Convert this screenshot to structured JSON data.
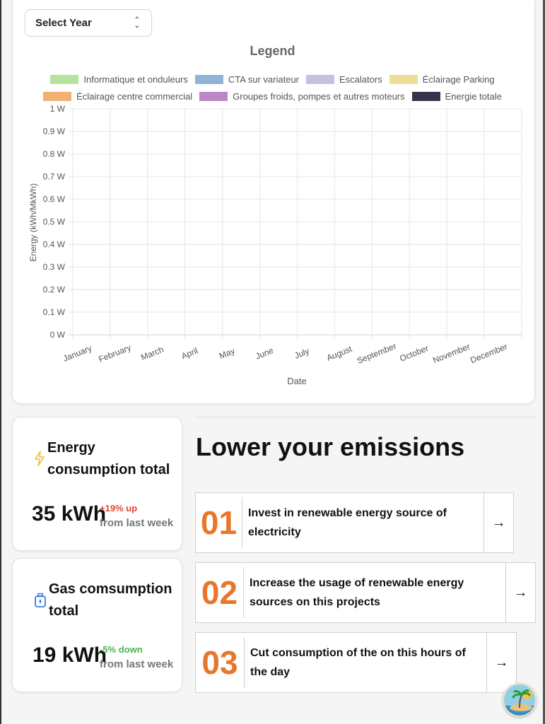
{
  "select_year": {
    "label": "Select Year"
  },
  "legend": {
    "title": "Legend",
    "items": [
      {
        "label": "Informatique et onduleurs",
        "color": "#b5e3a0"
      },
      {
        "label": "CTA sur variateur",
        "color": "#8fb4d6"
      },
      {
        "label": "Escalators",
        "color": "#c2c3e3"
      },
      {
        "label": "Éclairage Parking",
        "color": "#efdd9a"
      },
      {
        "label": "Éclairage centre commercial",
        "color": "#f2b072"
      },
      {
        "label": "Groupes froids, pompes et autres moteurs",
        "color": "#bb88c7"
      },
      {
        "label": "Energie totale",
        "color": "#36334a"
      }
    ]
  },
  "chart_data": {
    "type": "line",
    "categories": [
      "January",
      "February",
      "March",
      "April",
      "May",
      "June",
      "July",
      "August",
      "September",
      "October",
      "November",
      "December"
    ],
    "series": [],
    "xlabel": "Date",
    "ylabel": "Energy (kWh/MkWh)",
    "ylim": [
      0,
      1
    ],
    "y_ticks": [
      "0 W",
      "0.1 W",
      "0.2 W",
      "0.3 W",
      "0.4 W",
      "0.5 W",
      "0.6 W",
      "0.7 W",
      "0.8 W",
      "0.9 W",
      "1 W"
    ],
    "grid": true,
    "legend_position": "top"
  },
  "energy_card": {
    "title": "Energy consumption total",
    "value": "35 kWh",
    "change": "+19% up",
    "sub": "from last week",
    "change_color": "#e0443a",
    "icon": "lightning-icon"
  },
  "gas_card": {
    "title": "Gas comsumption total",
    "value": "19 kWh",
    "change": "-5% down",
    "sub": "from last week",
    "change_color": "#4cb050",
    "icon": "gas-canister-icon"
  },
  "emissions": {
    "title": "Lower your emissions",
    "tips": [
      {
        "num": "01",
        "text": "Invest in renewable energy source of electricity",
        "arrow": "→"
      },
      {
        "num": "02",
        "text": "Increase the usage of renewable energy sources on this projects",
        "arrow": "→"
      },
      {
        "num": "03",
        "text": "Cut consumption of the on this hours of the day",
        "arrow": "→"
      }
    ]
  },
  "avatar": {
    "icon": "island-avatar-icon"
  }
}
